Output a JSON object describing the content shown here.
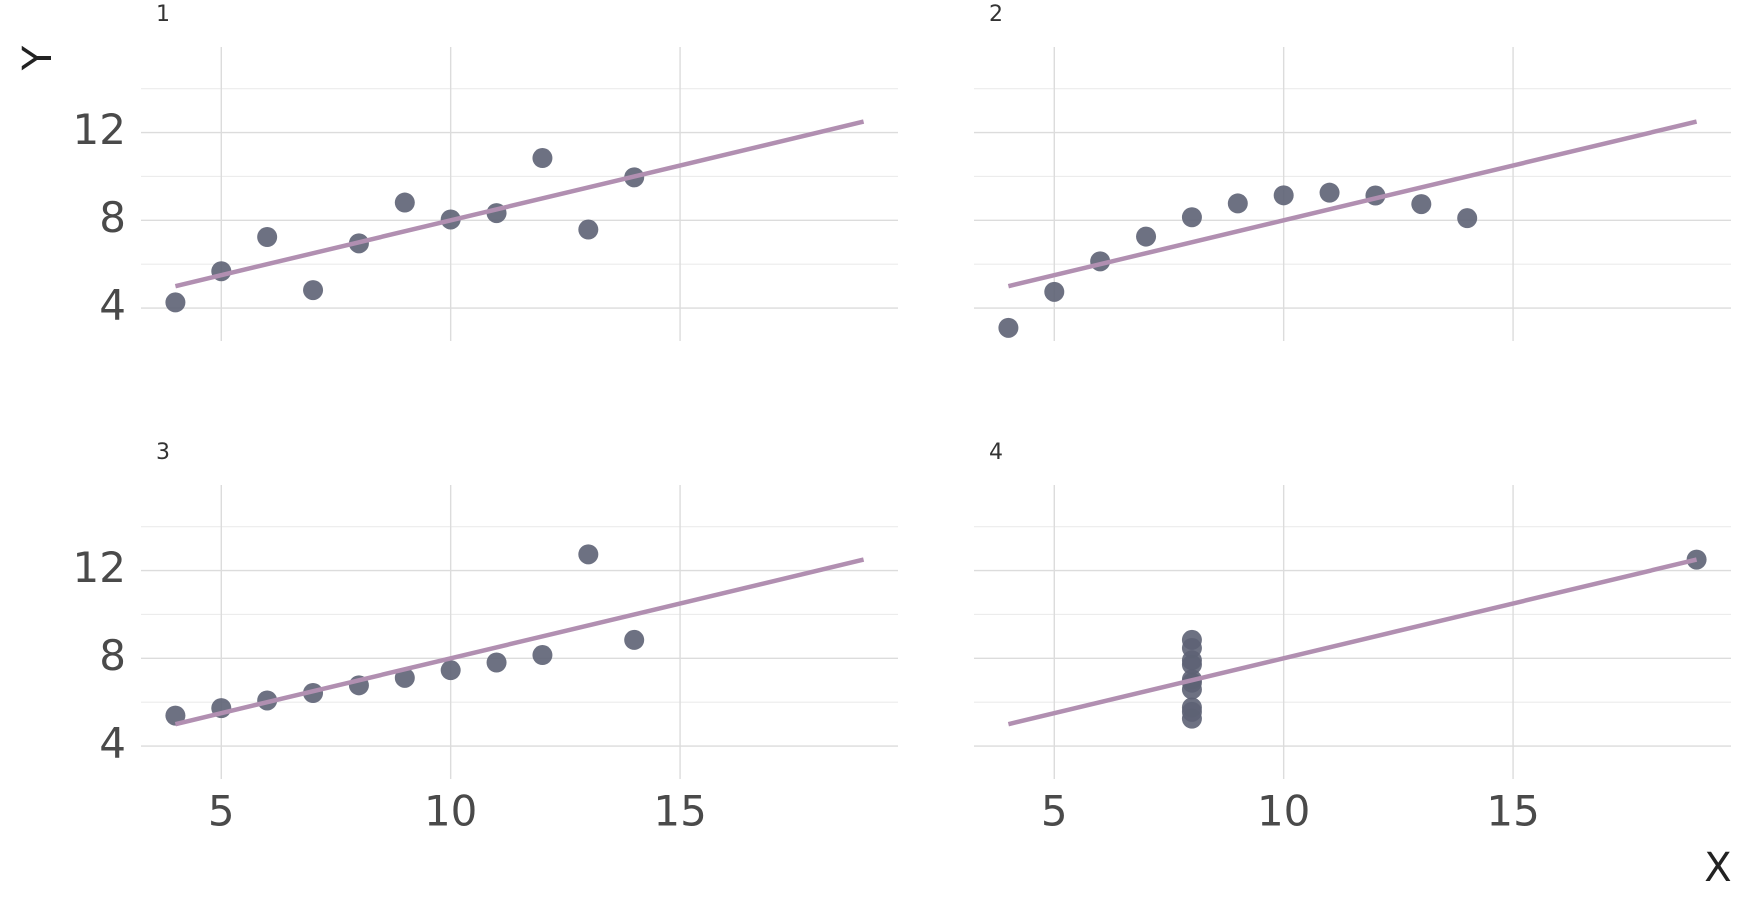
{
  "chart_data": [
    {
      "type": "scatter",
      "title": "1",
      "ylabel": "Y",
      "series": [
        {
          "color": "#5d6274",
          "x": [
            10,
            8,
            13,
            9,
            11,
            14,
            6,
            4,
            12,
            7,
            5
          ],
          "values": [
            8.04,
            6.95,
            7.58,
            8.81,
            8.33,
            9.96,
            7.24,
            4.26,
            10.84,
            4.82,
            5.68
          ]
        }
      ],
      "fit": {
        "color": "#b18fb1",
        "x": [
          4,
          19
        ],
        "values": [
          5,
          12.5
        ]
      },
      "xlim": [
        3.25,
        19.75
      ],
      "ylim": [
        2.5,
        15.9
      ],
      "xticks": [
        5,
        10,
        15
      ],
      "yticks": [
        4,
        8,
        12
      ],
      "minor_yticks": [
        6,
        10,
        14
      ],
      "grid": true
    },
    {
      "type": "scatter",
      "title": "2",
      "series": [
        {
          "color": "#5d6274",
          "x": [
            10,
            8,
            13,
            9,
            11,
            14,
            6,
            4,
            12,
            7,
            5
          ],
          "values": [
            9.14,
            8.14,
            8.74,
            8.77,
            9.26,
            8.1,
            6.13,
            3.1,
            9.13,
            7.26,
            4.74
          ]
        }
      ],
      "fit": {
        "color": "#b18fb1",
        "x": [
          4,
          19
        ],
        "values": [
          5,
          12.5
        ]
      },
      "xlim": [
        3.25,
        19.75
      ],
      "ylim": [
        2.5,
        15.9
      ],
      "xticks": [
        5,
        10,
        15
      ],
      "yticks": [
        4,
        8,
        12
      ],
      "minor_yticks": [
        6,
        10,
        14
      ],
      "grid": true
    },
    {
      "type": "scatter",
      "title": "3",
      "series": [
        {
          "color": "#5d6274",
          "x": [
            10,
            8,
            13,
            9,
            11,
            14,
            6,
            4,
            12,
            7,
            5
          ],
          "values": [
            7.46,
            6.77,
            12.74,
            7.11,
            7.81,
            8.84,
            6.08,
            5.39,
            8.15,
            6.42,
            5.73
          ]
        }
      ],
      "fit": {
        "color": "#b18fb1",
        "x": [
          4,
          19
        ],
        "values": [
          5,
          12.5
        ]
      },
      "xlim": [
        3.25,
        19.75
      ],
      "ylim": [
        2.5,
        15.9
      ],
      "xticks": [
        5,
        10,
        15
      ],
      "yticks": [
        4,
        8,
        12
      ],
      "minor_yticks": [
        6,
        10,
        14
      ],
      "grid": true
    },
    {
      "type": "scatter",
      "title": "4",
      "xlabel": "X",
      "series": [
        {
          "color": "#5d6274",
          "x": [
            8,
            8,
            8,
            8,
            8,
            8,
            8,
            19,
            8,
            8,
            8
          ],
          "values": [
            6.58,
            5.76,
            7.71,
            8.84,
            8.47,
            7.04,
            5.25,
            12.5,
            5.56,
            7.91,
            6.89
          ]
        }
      ],
      "fit": {
        "color": "#b18fb1",
        "x": [
          4,
          19
        ],
        "values": [
          5,
          12.5
        ]
      },
      "xlim": [
        3.25,
        19.75
      ],
      "ylim": [
        2.5,
        15.9
      ],
      "xticks": [
        5,
        10,
        15
      ],
      "yticks": [
        4,
        8,
        12
      ],
      "minor_yticks": [
        6,
        10,
        14
      ],
      "grid": true
    }
  ]
}
